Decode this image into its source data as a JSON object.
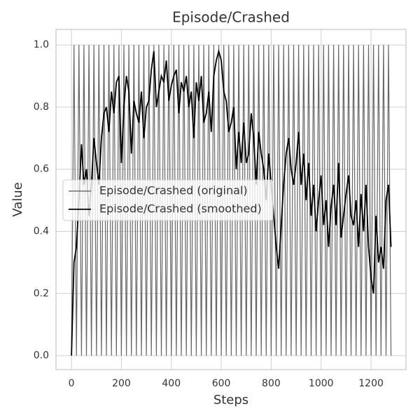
{
  "chart_data": {
    "type": "line",
    "title": "Episode/Crashed",
    "xlabel": "Steps",
    "ylabel": "Value",
    "x": [
      0,
      10,
      20,
      30,
      40,
      50,
      60,
      70,
      80,
      90,
      100,
      110,
      120,
      130,
      140,
      150,
      160,
      170,
      180,
      190,
      200,
      210,
      220,
      230,
      240,
      250,
      260,
      270,
      280,
      290,
      300,
      310,
      320,
      330,
      340,
      350,
      360,
      370,
      380,
      390,
      400,
      410,
      420,
      430,
      440,
      450,
      460,
      470,
      480,
      490,
      500,
      510,
      520,
      530,
      540,
      550,
      560,
      570,
      580,
      590,
      600,
      610,
      620,
      630,
      640,
      650,
      660,
      670,
      680,
      690,
      700,
      710,
      720,
      730,
      740,
      750,
      760,
      770,
      780,
      790,
      800,
      810,
      820,
      830,
      840,
      850,
      860,
      870,
      880,
      890,
      900,
      910,
      920,
      930,
      940,
      950,
      960,
      970,
      980,
      990,
      1000,
      1010,
      1020,
      1030,
      1040,
      1050,
      1060,
      1070,
      1080,
      1090,
      1100,
      1110,
      1120,
      1130,
      1140,
      1150,
      1160,
      1170,
      1180,
      1190,
      1200,
      1210,
      1220,
      1230,
      1240,
      1250,
      1260,
      1270,
      1280
    ],
    "series": [
      {
        "name": "Episode/Crashed (original)",
        "color": "#555555",
        "values": [
          0,
          1,
          0,
          1,
          0,
          1,
          0,
          1,
          0,
          1,
          0,
          1,
          0,
          1,
          0,
          1,
          0,
          1,
          0,
          1,
          0,
          1,
          0,
          1,
          0,
          1,
          0,
          1,
          0,
          1,
          0,
          1,
          0,
          1,
          0,
          1,
          0,
          1,
          0,
          1,
          0,
          1,
          0,
          1,
          0,
          1,
          0,
          1,
          0,
          1,
          0,
          1,
          0,
          1,
          0,
          1,
          0,
          1,
          0,
          1,
          0,
          1,
          0,
          1,
          0,
          1,
          0,
          1,
          0,
          1,
          0,
          1,
          0,
          1,
          0,
          1,
          0,
          1,
          0,
          1,
          0,
          1,
          0,
          1,
          0,
          1,
          0,
          1,
          0,
          1,
          0,
          1,
          0,
          1,
          0,
          1,
          0,
          1,
          0,
          1,
          0,
          1,
          0,
          1,
          0,
          1,
          0,
          1,
          0,
          1,
          0,
          1,
          0,
          1,
          0,
          1,
          0,
          1,
          0,
          1,
          0,
          1,
          0,
          1,
          0,
          1,
          0,
          1,
          0
        ]
      },
      {
        "name": "Episode/Crashed (smoothed)",
        "color": "#000000",
        "values": [
          0,
          0.3,
          0.35,
          0.5,
          0.68,
          0.55,
          0.6,
          0.45,
          0.55,
          0.7,
          0.62,
          0.55,
          0.7,
          0.78,
          0.8,
          0.72,
          0.85,
          0.78,
          0.88,
          0.9,
          0.62,
          0.8,
          0.9,
          0.85,
          0.65,
          0.82,
          0.78,
          0.75,
          0.85,
          0.7,
          0.8,
          0.82,
          0.92,
          0.98,
          0.8,
          0.85,
          0.9,
          0.88,
          0.95,
          0.82,
          0.87,
          0.9,
          0.92,
          0.78,
          0.88,
          0.85,
          0.9,
          0.8,
          0.85,
          0.7,
          0.88,
          0.82,
          0.9,
          0.75,
          0.78,
          0.85,
          0.72,
          0.9,
          0.95,
          0.98,
          0.95,
          0.85,
          0.82,
          0.72,
          0.75,
          0.8,
          0.6,
          0.72,
          0.62,
          0.75,
          0.62,
          0.65,
          0.78,
          0.7,
          0.55,
          0.72,
          0.65,
          0.6,
          0.5,
          0.65,
          0.55,
          0.45,
          0.35,
          0.28,
          0.42,
          0.55,
          0.65,
          0.7,
          0.6,
          0.55,
          0.62,
          0.72,
          0.55,
          0.65,
          0.5,
          0.62,
          0.45,
          0.55,
          0.4,
          0.5,
          0.58,
          0.42,
          0.5,
          0.35,
          0.48,
          0.55,
          0.42,
          0.62,
          0.38,
          0.45,
          0.52,
          0.58,
          0.45,
          0.42,
          0.5,
          0.35,
          0.52,
          0.4,
          0.55,
          0.35,
          0.25,
          0.2,
          0.45,
          0.3,
          0.35,
          0.28,
          0.5,
          0.55,
          0.35
        ]
      }
    ],
    "xlim": [
      -62,
      1340
    ],
    "ylim": [
      -0.045,
      1.05
    ],
    "xticks": [
      0,
      200,
      400,
      600,
      800,
      1000,
      1200
    ],
    "yticks": [
      {
        "value": 0,
        "label": "0.0"
      },
      {
        "value": 0.2,
        "label": "0.2"
      },
      {
        "value": 0.4,
        "label": "0.4"
      },
      {
        "value": 0.6,
        "label": "0.6"
      },
      {
        "value": 0.8,
        "label": "0.8"
      },
      {
        "value": 1,
        "label": "1.0"
      }
    ],
    "grid": true,
    "legend": "center left"
  }
}
